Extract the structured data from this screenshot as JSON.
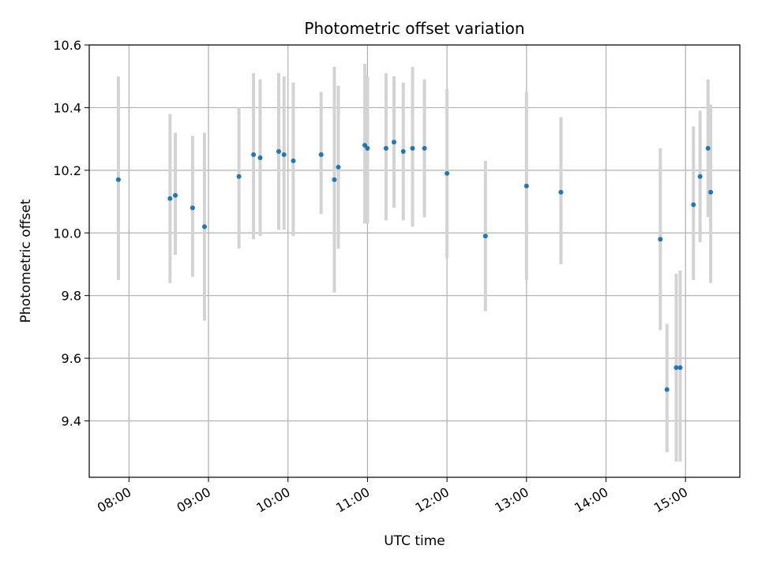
{
  "chart_data": {
    "type": "scatter",
    "title": "Photometric offset variation",
    "xlabel": "UTC time",
    "ylabel": "Photometric offset",
    "x_tick_labels": [
      "08:00",
      "09:00",
      "10:00",
      "11:00",
      "12:00",
      "13:00",
      "14:00",
      "15:00"
    ],
    "y_tick_labels": [
      "9.4",
      "9.6",
      "9.8",
      "10.0",
      "10.2",
      "10.4",
      "10.6"
    ],
    "xlim": [
      "07:30",
      "15:41"
    ],
    "ylim": [
      9.22,
      10.6
    ],
    "grid": true,
    "series": [
      {
        "style": "errorbar",
        "marker_color": "#1f77b4",
        "errorbar_color": "#d3d3d3",
        "points": [
          {
            "x": "07:52",
            "y": 10.17,
            "ylow": 9.85,
            "yhigh": 10.5
          },
          {
            "x": "08:31",
            "y": 10.11,
            "ylow": 9.84,
            "yhigh": 10.38
          },
          {
            "x": "08:35",
            "y": 10.12,
            "ylow": 9.93,
            "yhigh": 10.32
          },
          {
            "x": "08:48",
            "y": 10.08,
            "ylow": 9.86,
            "yhigh": 10.31
          },
          {
            "x": "08:57",
            "y": 10.02,
            "ylow": 9.72,
            "yhigh": 10.32
          },
          {
            "x": "09:23",
            "y": 10.18,
            "ylow": 9.95,
            "yhigh": 10.4
          },
          {
            "x": "09:34",
            "y": 10.25,
            "ylow": 9.98,
            "yhigh": 10.51
          },
          {
            "x": "09:39",
            "y": 10.24,
            "ylow": 9.99,
            "yhigh": 10.49
          },
          {
            "x": "09:53",
            "y": 10.26,
            "ylow": 10.01,
            "yhigh": 10.51
          },
          {
            "x": "09:57",
            "y": 10.25,
            "ylow": 10.01,
            "yhigh": 10.5
          },
          {
            "x": "10:04",
            "y": 10.23,
            "ylow": 9.99,
            "yhigh": 10.48
          },
          {
            "x": "10:25",
            "y": 10.25,
            "ylow": 10.06,
            "yhigh": 10.45
          },
          {
            "x": "10:35",
            "y": 10.17,
            "ylow": 9.81,
            "yhigh": 10.53
          },
          {
            "x": "10:38",
            "y": 10.21,
            "ylow": 9.95,
            "yhigh": 10.47
          },
          {
            "x": "10:58",
            "y": 10.28,
            "ylow": 10.03,
            "yhigh": 10.54
          },
          {
            "x": "11:00",
            "y": 10.27,
            "ylow": 10.03,
            "yhigh": 10.5
          },
          {
            "x": "11:14",
            "y": 10.27,
            "ylow": 10.04,
            "yhigh": 10.51
          },
          {
            "x": "11:20",
            "y": 10.29,
            "ylow": 10.08,
            "yhigh": 10.5
          },
          {
            "x": "11:27",
            "y": 10.26,
            "ylow": 10.04,
            "yhigh": 10.48
          },
          {
            "x": "11:34",
            "y": 10.27,
            "ylow": 10.02,
            "yhigh": 10.53
          },
          {
            "x": "11:43",
            "y": 10.27,
            "ylow": 10.05,
            "yhigh": 10.49
          },
          {
            "x": "12:00",
            "y": 10.19,
            "ylow": 9.92,
            "yhigh": 10.46
          },
          {
            "x": "12:29",
            "y": 9.99,
            "ylow": 9.75,
            "yhigh": 10.23
          },
          {
            "x": "13:00",
            "y": 10.15,
            "ylow": 9.85,
            "yhigh": 10.45
          },
          {
            "x": "13:26",
            "y": 10.13,
            "ylow": 9.9,
            "yhigh": 10.37
          },
          {
            "x": "14:41",
            "y": 9.98,
            "ylow": 9.69,
            "yhigh": 10.27
          },
          {
            "x": "14:46",
            "y": 9.5,
            "ylow": 9.3,
            "yhigh": 9.71
          },
          {
            "x": "14:53",
            "y": 9.57,
            "ylow": 9.27,
            "yhigh": 9.87
          },
          {
            "x": "14:56",
            "y": 9.57,
            "ylow": 9.27,
            "yhigh": 9.88
          },
          {
            "x": "15:06",
            "y": 10.09,
            "ylow": 9.85,
            "yhigh": 10.34
          },
          {
            "x": "15:11",
            "y": 10.18,
            "ylow": 9.97,
            "yhigh": 10.39
          },
          {
            "x": "15:17",
            "y": 10.27,
            "ylow": 10.05,
            "yhigh": 10.49
          },
          {
            "x": "15:19",
            "y": 10.13,
            "ylow": 9.84,
            "yhigh": 10.41
          }
        ]
      }
    ]
  }
}
